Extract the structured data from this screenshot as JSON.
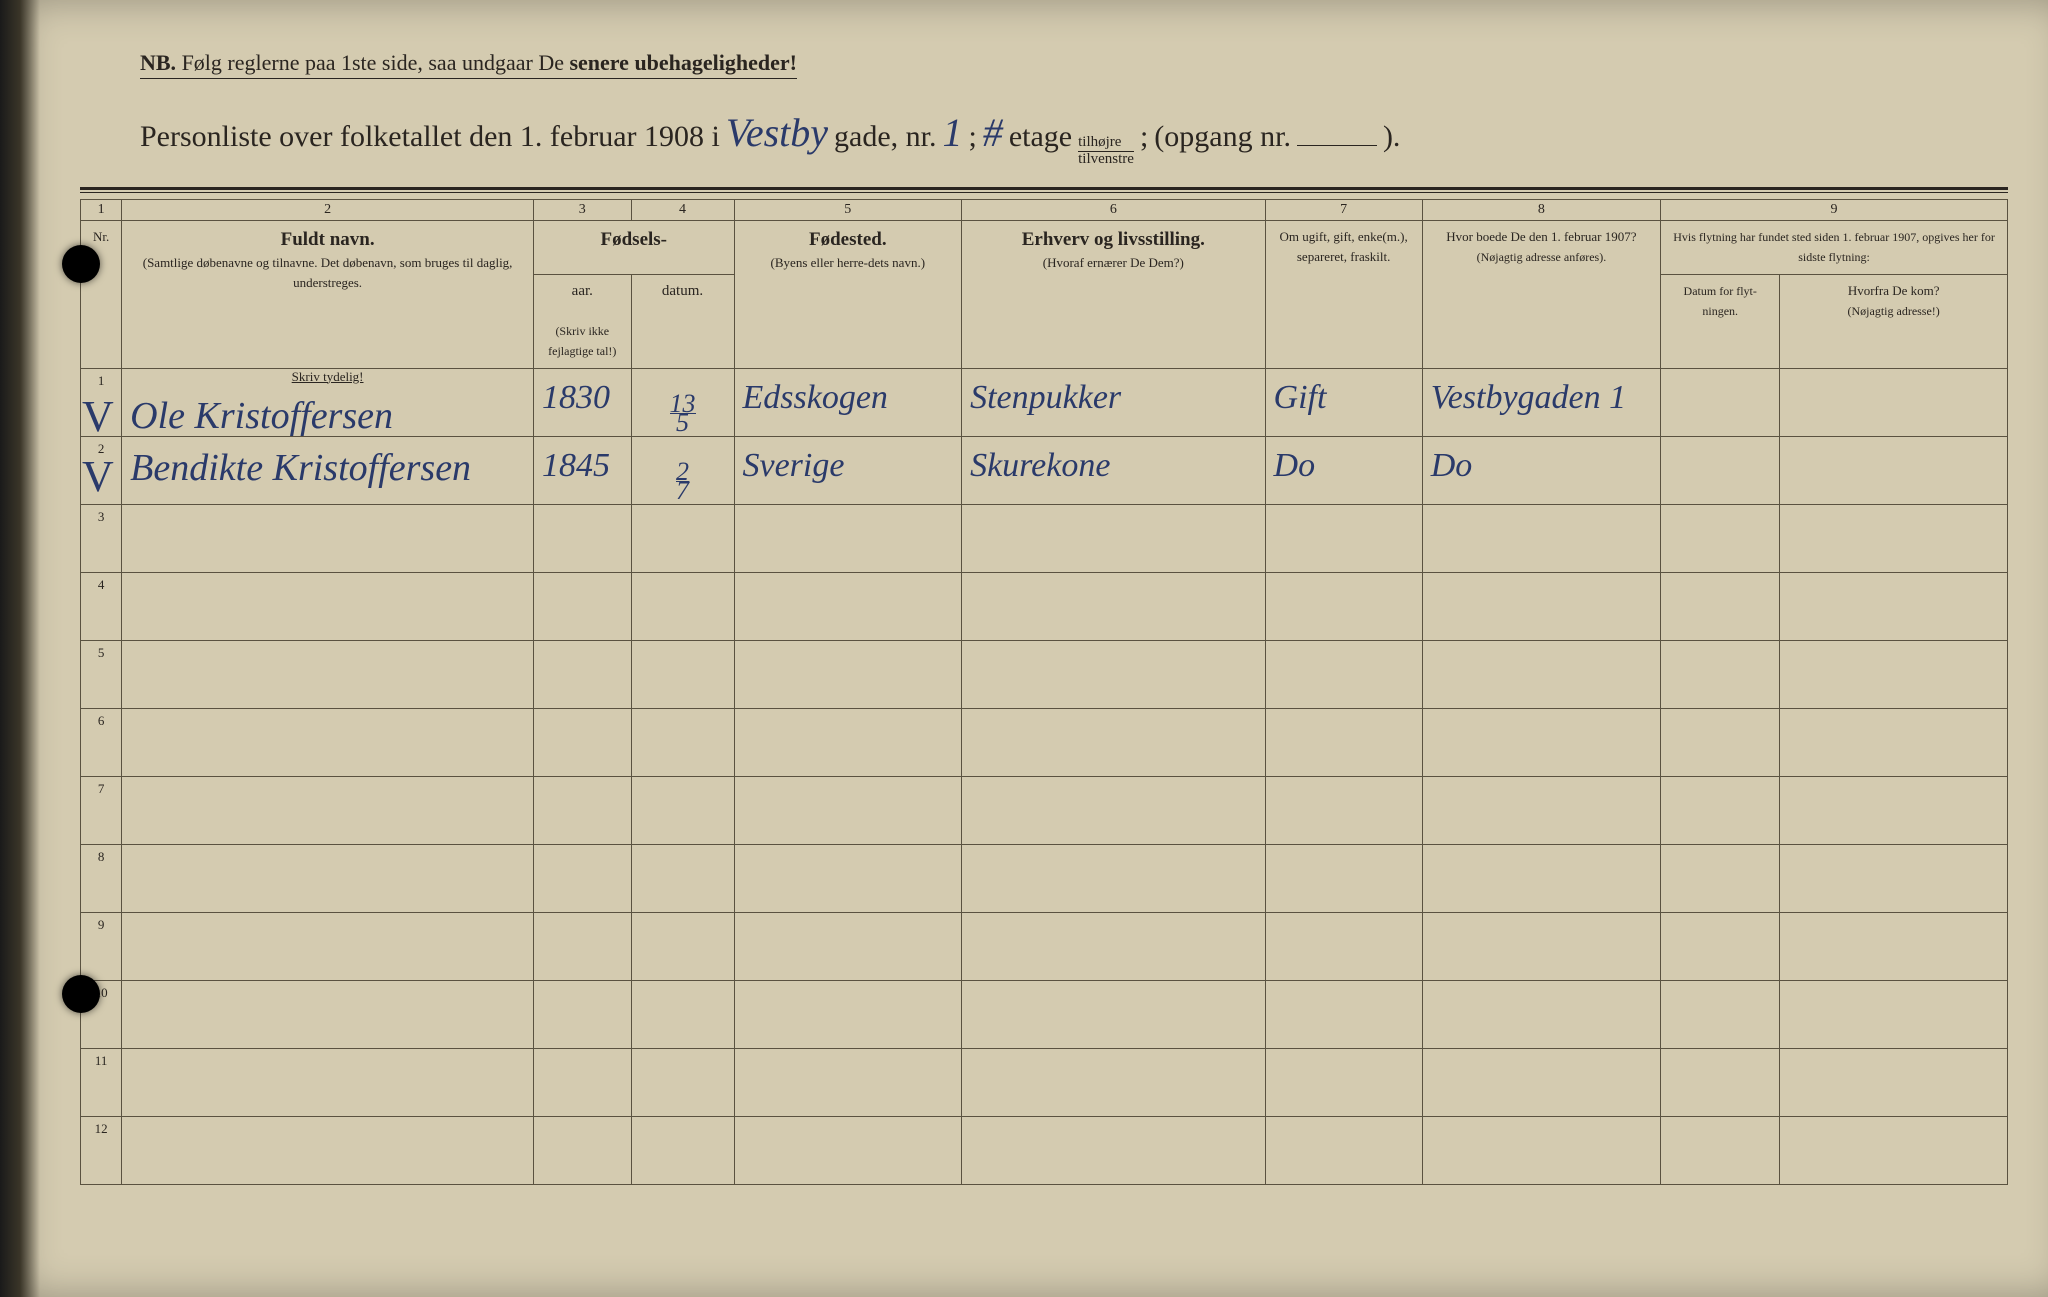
{
  "colors": {
    "paper": "#d4cbb0",
    "ink_print": "#2a2520",
    "ink_hand": "#2a3a6a",
    "rule": "#5a5240"
  },
  "nb": {
    "label": "NB.",
    "text": "Følg reglerne paa 1ste side, saa undgaar De",
    "bold_tail": "senere ubehageligheder!"
  },
  "header": {
    "prefix": "Personliste over folketallet den 1. februar 1908 i",
    "street_hand": "Vestby",
    "gade": "gade, nr.",
    "nr_hand": "1",
    "semicolon": ";",
    "etage_hand": "#",
    "etage": "etage",
    "fraction_top": "tilhøjre",
    "fraction_bottom": "tilvenstre",
    "semicolon2": ";",
    "opgang": "(opgang nr.",
    "closing": ")."
  },
  "col_numbers": [
    "1",
    "2",
    "3",
    "4",
    "5",
    "6",
    "7",
    "8",
    "9"
  ],
  "headers": {
    "nr": "Nr.",
    "fuldt_navn": "Fuldt navn.",
    "fuldt_navn_sub": "(Samtlige døbenavne og tilnavne. Det døbenavn, som bruges til daglig, understreges.",
    "fodsels": "Fødsels-",
    "aar": "aar.",
    "datum": "datum.",
    "fodsels_note": "(Skriv ikke fejlagtige tal!)",
    "fodested": "Fødested.",
    "fodested_sub": "(Byens eller herre-dets navn.)",
    "erhverv": "Erhverv og livsstilling.",
    "erhverv_sub": "(Hvoraf ernærer De Dem?)",
    "marital": "Om ugift, gift, enke(m.), separeret, fraskilt.",
    "prev_addr": "Hvor boede De den 1. februar 1907?",
    "prev_addr_sub": "(Nøjagtig adresse anføres).",
    "move_header": "Hvis flytning har fundet sted siden 1. februar 1907, opgives her for sidste flytning:",
    "move_date": "Datum for flyt-ningen.",
    "move_where": "Hvorfra De kom?",
    "move_where_sub": "(Nøjagtig adresse!)",
    "skriv_tydelig": "Skriv tydelig!"
  },
  "rows": [
    {
      "n": "1",
      "check": "V",
      "name": "Ole Kristoffersen",
      "year": "1830",
      "date_top": "13",
      "date_bot": "5",
      "place": "Edsskogen",
      "occupation": "Stenpukker",
      "marital": "Gift",
      "prev": "Vestbygaden 1",
      "move_date": "",
      "move_where": ""
    },
    {
      "n": "2",
      "check": "V",
      "name": "Bendikte Kristoffersen",
      "year": "1845",
      "date_top": "2",
      "date_bot": "7",
      "place": "Sverige",
      "occupation": "Skurekone",
      "marital": "Do",
      "prev": "Do",
      "move_date": "",
      "move_where": ""
    },
    {
      "n": "3"
    },
    {
      "n": "4"
    },
    {
      "n": "5"
    },
    {
      "n": "6"
    },
    {
      "n": "7"
    },
    {
      "n": "8"
    },
    {
      "n": "9"
    },
    {
      "n": "10"
    },
    {
      "n": "11"
    },
    {
      "n": "12"
    }
  ]
}
